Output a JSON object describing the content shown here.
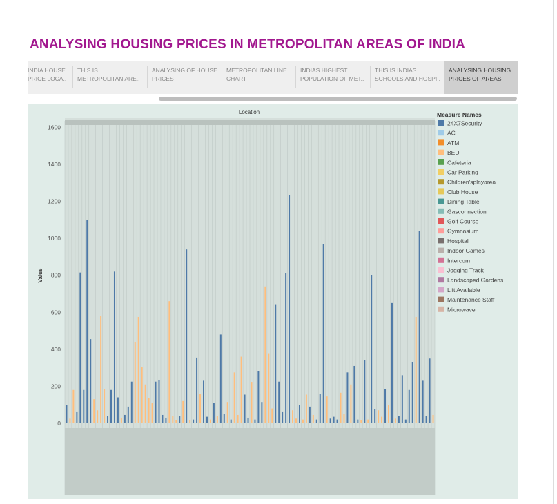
{
  "dashboard": {
    "title": "ANALYSING HOUSING PRICES IN METROPOLITAN AREAS OF INDIA"
  },
  "tabs": [
    {
      "line1": "INDIA HOUSE",
      "line2": "PRICE LOCA..",
      "active": false
    },
    {
      "line1": "THIS IS",
      "line2": "METROPOLITAN ARE..",
      "active": false
    },
    {
      "line1": "ANALYSING OF HOUSE",
      "line2": "PRICES",
      "active": false
    },
    {
      "line1": "METROPOLITAN LINE",
      "line2": "CHART",
      "active": false
    },
    {
      "line1": "INDIAS HIGHEST",
      "line2": "POPULATION OF MET..",
      "active": false
    },
    {
      "line1": "THIS IS INDIAS",
      "line2": "SCHOOLS AND HOSPI..",
      "active": false
    },
    {
      "line1": "ANALYSING HOUSING",
      "line2": "PRICES OF AREAS",
      "active": true
    }
  ],
  "chart_data": {
    "type": "bar",
    "title": "Location",
    "xlabel": "Location",
    "ylabel": "Value",
    "ylim": [
      0,
      1650
    ],
    "yticks": [
      0,
      200,
      400,
      600,
      800,
      1000,
      1200,
      1400,
      1600
    ],
    "grid": false,
    "legend_position": "right",
    "legend_title": "Measure Names",
    "series": [
      {
        "name": "24X7Security",
        "color": "#4e79a7"
      },
      {
        "name": "AC",
        "color": "#a0cbe8"
      },
      {
        "name": "ATM",
        "color": "#f28e2b"
      },
      {
        "name": "BED",
        "color": "#ffbe7d"
      },
      {
        "name": "Cafeteria",
        "color": "#59a14f"
      },
      {
        "name": "Car Parking",
        "color": "#f1ce63"
      },
      {
        "name": "Children'splayarea",
        "color": "#b6992d"
      },
      {
        "name": "Club House",
        "color": "#e6c95a"
      },
      {
        "name": "Dining Table",
        "color": "#499894"
      },
      {
        "name": "Gasconnection",
        "color": "#86bcb6"
      },
      {
        "name": "Golf Course",
        "color": "#e15759"
      },
      {
        "name": "Gymnasium",
        "color": "#ff9d9a"
      },
      {
        "name": "Hospital",
        "color": "#79706e"
      },
      {
        "name": "Indoor Games",
        "color": "#bab0ac"
      },
      {
        "name": "Intercom",
        "color": "#d37295"
      },
      {
        "name": "Jogging Track",
        "color": "#fabfd2"
      },
      {
        "name": "Landscaped Gardens",
        "color": "#b07aa1"
      },
      {
        "name": "Lift Available",
        "color": "#d4a6c8"
      },
      {
        "name": "Maintenance Staff",
        "color": "#9d7660"
      },
      {
        "name": "Microwave",
        "color": "#d7b5a6"
      }
    ],
    "bars": [
      {
        "series": "24X7Security",
        "value": 100
      },
      {
        "series": "BED",
        "value": 25
      },
      {
        "series": "BED",
        "value": 180
      },
      {
        "series": "24X7Security",
        "value": 60
      },
      {
        "series": "24X7Security",
        "value": 815
      },
      {
        "series": "24X7Security",
        "value": 180
      },
      {
        "series": "24X7Security",
        "value": 1100
      },
      {
        "series": "24X7Security",
        "value": 455
      },
      {
        "series": "BED",
        "value": 130
      },
      {
        "series": "BED",
        "value": 70
      },
      {
        "series": "BED",
        "value": 580
      },
      {
        "series": "BED",
        "value": 185
      },
      {
        "series": "24X7Security",
        "value": 40
      },
      {
        "series": "24X7Security",
        "value": 180
      },
      {
        "series": "24X7Security",
        "value": 820
      },
      {
        "series": "24X7Security",
        "value": 140
      },
      {
        "series": "BED",
        "value": 30
      },
      {
        "series": "24X7Security",
        "value": 45
      },
      {
        "series": "24X7Security",
        "value": 90
      },
      {
        "series": "24X7Security",
        "value": 225
      },
      {
        "series": "BED",
        "value": 440
      },
      {
        "series": "BED",
        "value": 575
      },
      {
        "series": "BED",
        "value": 305
      },
      {
        "series": "BED",
        "value": 210
      },
      {
        "series": "BED",
        "value": 135
      },
      {
        "series": "BED",
        "value": 110
      },
      {
        "series": "24X7Security",
        "value": 225
      },
      {
        "series": "24X7Security",
        "value": 235
      },
      {
        "series": "24X7Security",
        "value": 45
      },
      {
        "series": "24X7Security",
        "value": 30
      },
      {
        "series": "BED",
        "value": 660
      },
      {
        "series": "BED",
        "value": 40
      },
      {
        "series": "BED",
        "value": 15
      },
      {
        "series": "24X7Security",
        "value": 40
      },
      {
        "series": "BED",
        "value": 120
      },
      {
        "series": "24X7Security",
        "value": 940
      },
      {
        "series": "BED",
        "value": 15
      },
      {
        "series": "24X7Security",
        "value": 20
      },
      {
        "series": "24X7Security",
        "value": 355
      },
      {
        "series": "BED",
        "value": 160
      },
      {
        "series": "24X7Security",
        "value": 230
      },
      {
        "series": "24X7Security",
        "value": 35
      },
      {
        "series": "BED",
        "value": 20
      },
      {
        "series": "24X7Security",
        "value": 110
      },
      {
        "series": "BED",
        "value": 40
      },
      {
        "series": "24X7Security",
        "value": 480
      },
      {
        "series": "24X7Security",
        "value": 50
      },
      {
        "series": "BED",
        "value": 115
      },
      {
        "series": "24X7Security",
        "value": 20
      },
      {
        "series": "BED",
        "value": 275
      },
      {
        "series": "BED",
        "value": 45
      },
      {
        "series": "BED",
        "value": 360
      },
      {
        "series": "24X7Security",
        "value": 155
      },
      {
        "series": "24X7Security",
        "value": 30
      },
      {
        "series": "BED",
        "value": 220
      },
      {
        "series": "24X7Security",
        "value": 20
      },
      {
        "series": "24X7Security",
        "value": 280
      },
      {
        "series": "24X7Security",
        "value": 115
      },
      {
        "series": "BED",
        "value": 740
      },
      {
        "series": "BED",
        "value": 375
      },
      {
        "series": "BED",
        "value": 80
      },
      {
        "series": "24X7Security",
        "value": 640
      },
      {
        "series": "24X7Security",
        "value": 225
      },
      {
        "series": "24X7Security",
        "value": 60
      },
      {
        "series": "24X7Security",
        "value": 810
      },
      {
        "series": "24X7Security",
        "value": 1235
      },
      {
        "series": "BED",
        "value": 70
      },
      {
        "series": "BED",
        "value": 25
      },
      {
        "series": "24X7Security",
        "value": 100
      },
      {
        "series": "BED",
        "value": 20
      },
      {
        "series": "BED",
        "value": 155
      },
      {
        "series": "24X7Security",
        "value": 90
      },
      {
        "series": "BED",
        "value": 45
      },
      {
        "series": "24X7Security",
        "value": 20
      },
      {
        "series": "24X7Security",
        "value": 160
      },
      {
        "series": "24X7Security",
        "value": 970
      },
      {
        "series": "BED",
        "value": 145
      },
      {
        "series": "24X7Security",
        "value": 25
      },
      {
        "series": "24X7Security",
        "value": 35
      },
      {
        "series": "24X7Security",
        "value": 20
      },
      {
        "series": "BED",
        "value": 165
      },
      {
        "series": "BED",
        "value": 50
      },
      {
        "series": "24X7Security",
        "value": 275
      },
      {
        "series": "BED",
        "value": 210
      },
      {
        "series": "24X7Security",
        "value": 310
      },
      {
        "series": "24X7Security",
        "value": 20
      },
      {
        "series": "BED",
        "value": 15
      },
      {
        "series": "24X7Security",
        "value": 340
      },
      {
        "series": "BED",
        "value": 20
      },
      {
        "series": "24X7Security",
        "value": 800
      },
      {
        "series": "24X7Security",
        "value": 75
      },
      {
        "series": "BED",
        "value": 70
      },
      {
        "series": "BED",
        "value": 35
      },
      {
        "series": "24X7Security",
        "value": 185
      },
      {
        "series": "BED",
        "value": 100
      },
      {
        "series": "24X7Security",
        "value": 650
      },
      {
        "series": "BED",
        "value": 25
      },
      {
        "series": "24X7Security",
        "value": 40
      },
      {
        "series": "24X7Security",
        "value": 260
      },
      {
        "series": "24X7Security",
        "value": 20
      },
      {
        "series": "24X7Security",
        "value": 180
      },
      {
        "series": "24X7Security",
        "value": 330
      },
      {
        "series": "BED",
        "value": 575
      },
      {
        "series": "24X7Security",
        "value": 1040
      },
      {
        "series": "24X7Security",
        "value": 230
      },
      {
        "series": "24X7Security",
        "value": 40
      },
      {
        "series": "24X7Security",
        "value": 350
      },
      {
        "series": "BED",
        "value": 45
      }
    ]
  }
}
